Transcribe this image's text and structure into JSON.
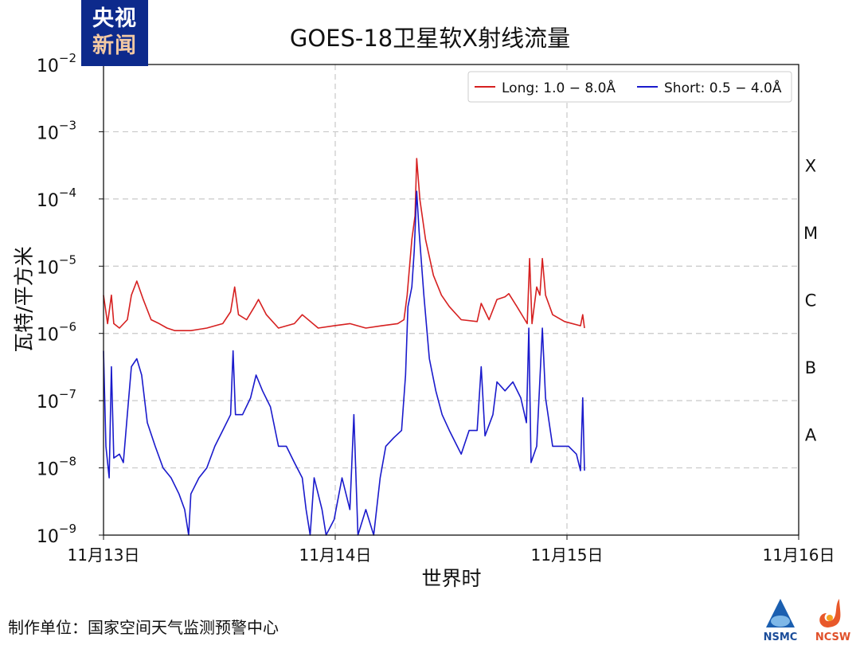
{
  "chart_data": {
    "type": "line",
    "title": "GOES-18卫星软X射线流量",
    "xlabel": "世界时",
    "ylabel": "瓦特/平方米",
    "yscale": "log",
    "ylim": [
      1e-09,
      0.01
    ],
    "xlim": [
      "11-13 00:00",
      "11-16 00:00"
    ],
    "grid": true,
    "legend_position": "top-right",
    "x_ticks": [
      {
        "at": "11-13 00:00",
        "label": "11月13日"
      },
      {
        "at": "11-14 00:00",
        "label": "11月14日"
      },
      {
        "at": "11-15 00:00",
        "label": "11月15日"
      },
      {
        "at": "11-16 00:00",
        "label": "11月16日"
      }
    ],
    "y_ticks": [
      {
        "value": 0.01,
        "base": "10",
        "exp": "−2"
      },
      {
        "value": 0.001,
        "base": "10",
        "exp": "−3"
      },
      {
        "value": 0.0001,
        "base": "10",
        "exp": "−4"
      },
      {
        "value": 1e-05,
        "base": "10",
        "exp": "−5"
      },
      {
        "value": 1e-06,
        "base": "10",
        "exp": "−6"
      },
      {
        "value": 1e-07,
        "base": "10",
        "exp": "−7"
      },
      {
        "value": 1e-08,
        "base": "10",
        "exp": "−8"
      },
      {
        "value": 1e-09,
        "base": "10",
        "exp": "−9"
      }
    ],
    "flare_classes": [
      {
        "label": "X",
        "value": 0.000316
      },
      {
        "label": "M",
        "value": 3.16e-05
      },
      {
        "label": "C",
        "value": 3.16e-06
      },
      {
        "label": "B",
        "value": 3.16e-07
      },
      {
        "label": "A",
        "value": 3.16e-08
      }
    ],
    "series": [
      {
        "name": "Long: 1.0 − 8.0Å",
        "color": "#d62020",
        "points": [
          [
            "11-13 00:00",
            3.7e-06
          ],
          [
            "11-13 00:25",
            1.4e-06
          ],
          [
            "11-13 00:49",
            3.7e-06
          ],
          [
            "11-13 01:04",
            1.4e-06
          ],
          [
            "11-13 01:39",
            1.2e-06
          ],
          [
            "11-13 02:28",
            1.6e-06
          ],
          [
            "11-13 02:53",
            3.7e-06
          ],
          [
            "11-13 03:27",
            6e-06
          ],
          [
            "11-13 04:07",
            3.2e-06
          ],
          [
            "11-13 04:56",
            1.6e-06
          ],
          [
            "11-13 05:46",
            1.4e-06
          ],
          [
            "11-13 06:35",
            1.2e-06
          ],
          [
            "11-13 07:24",
            1.1e-06
          ],
          [
            "11-13 09:03",
            1.1e-06
          ],
          [
            "11-13 10:42",
            1.2e-06
          ],
          [
            "11-13 12:21",
            1.4e-06
          ],
          [
            "11-13 13:10",
            2.1e-06
          ],
          [
            "11-13 13:35",
            4.9e-06
          ],
          [
            "11-13 13:59",
            1.9e-06
          ],
          [
            "11-13 14:49",
            1.6e-06
          ],
          [
            "11-13 15:38",
            2.5e-06
          ],
          [
            "11-13 16:03",
            3.2e-06
          ],
          [
            "11-13 16:52",
            1.9e-06
          ],
          [
            "11-13 18:07",
            1.2e-06
          ],
          [
            "11-13 19:46",
            1.4e-06
          ],
          [
            "11-13 20:35",
            1.9e-06
          ],
          [
            "11-13 22:14",
            1.2e-06
          ],
          [
            "11-13 23:53",
            1.3e-06
          ],
          [
            "11-14 01:31",
            1.4e-06
          ],
          [
            "11-14 03:10",
            1.2e-06
          ],
          [
            "11-14 04:49",
            1.3e-06
          ],
          [
            "11-14 06:28",
            1.4e-06
          ],
          [
            "11-14 07:07",
            1.6e-06
          ],
          [
            "11-14 07:27",
            3.7e-06
          ],
          [
            "11-14 07:56",
            2.5e-05
          ],
          [
            "11-14 08:16",
            5.6e-05
          ],
          [
            "11-14 08:26",
            0.0004
          ],
          [
            "11-14 08:46",
            9.8e-05
          ],
          [
            "11-14 09:21",
            2.5e-05
          ],
          [
            "11-14 10:10",
            7.3e-06
          ],
          [
            "11-14 11:00",
            3.7e-06
          ],
          [
            "11-14 11:49",
            2.5e-06
          ],
          [
            "11-14 13:03",
            1.6e-06
          ],
          [
            "11-14 14:42",
            1.5e-06
          ],
          [
            "11-14 15:07",
            2.8e-06
          ],
          [
            "11-14 15:56",
            1.6e-06
          ],
          [
            "11-14 16:45",
            3.2e-06
          ],
          [
            "11-14 17:35",
            3.5e-06
          ],
          [
            "11-14 17:59",
            3.9e-06
          ],
          [
            "11-14 18:49",
            2.5e-06
          ],
          [
            "11-14 19:38",
            1.6e-06
          ],
          [
            "11-14 19:53",
            1.4e-06
          ],
          [
            "11-14 20:08",
            1.3e-05
          ],
          [
            "11-14 20:23",
            1.4e-06
          ],
          [
            "11-14 20:52",
            4.9e-06
          ],
          [
            "11-14 21:12",
            3.7e-06
          ],
          [
            "11-14 21:27",
            1.3e-05
          ],
          [
            "11-14 21:47",
            3.7e-06
          ],
          [
            "11-14 22:31",
            1.9e-06
          ],
          [
            "11-14 23:45",
            1.5e-06
          ],
          [
            "11-15 01:24",
            1.3e-06
          ],
          [
            "11-15 01:38",
            1.9e-06
          ],
          [
            "11-15 01:49",
            1.2e-06
          ]
        ]
      },
      {
        "name": "Short: 0.5 − 4.0Å",
        "color": "#1a1acc",
        "points": [
          [
            "11-13 00:00",
            5.5e-07
          ],
          [
            "11-13 00:15",
            2.1e-08
          ],
          [
            "11-13 00:35",
            7.1e-09
          ],
          [
            "11-13 00:49",
            3.2e-07
          ],
          [
            "11-13 01:04",
            1.4e-08
          ],
          [
            "11-13 01:39",
            1.6e-08
          ],
          [
            "11-13 02:03",
            1.2e-08
          ],
          [
            "11-13 02:28",
            6.2e-08
          ],
          [
            "11-13 02:53",
            3.2e-07
          ],
          [
            "11-13 03:27",
            4.2e-07
          ],
          [
            "11-13 03:57",
            2.4e-07
          ],
          [
            "11-13 04:32",
            4.7e-08
          ],
          [
            "11-13 05:21",
            2.1e-08
          ],
          [
            "11-13 06:10",
            1e-08
          ],
          [
            "11-13 07:00",
            7.1e-09
          ],
          [
            "11-13 07:49",
            4.1e-09
          ],
          [
            "11-13 08:24",
            2.4e-09
          ],
          [
            "11-13 08:49",
            1e-09
          ],
          [
            "11-13 09:03",
            4.1e-09
          ],
          [
            "11-13 09:53",
            7.1e-09
          ],
          [
            "11-13 10:42",
            1e-08
          ],
          [
            "11-13 11:32",
            2.1e-08
          ],
          [
            "11-13 12:21",
            3.6e-08
          ],
          [
            "11-13 13:10",
            6.2e-08
          ],
          [
            "11-13 13:25",
            5.5e-07
          ],
          [
            "11-13 13:40",
            6.2e-08
          ],
          [
            "11-13 14:24",
            6.2e-08
          ],
          [
            "11-13 15:14",
            1.1e-07
          ],
          [
            "11-13 15:48",
            2.4e-07
          ],
          [
            "11-13 16:28",
            1.4e-07
          ],
          [
            "11-13 17:17",
            8.1e-08
          ],
          [
            "11-13 18:07",
            2.1e-08
          ],
          [
            "11-13 18:56",
            2.1e-08
          ],
          [
            "11-13 19:46",
            1.2e-08
          ],
          [
            "11-13 20:35",
            7.1e-09
          ],
          [
            "11-13 20:59",
            2.4e-09
          ],
          [
            "11-13 21:24",
            1e-09
          ],
          [
            "11-13 21:49",
            7.1e-09
          ],
          [
            "11-13 22:38",
            2.4e-09
          ],
          [
            "11-13 23:03",
            1e-09
          ],
          [
            "11-13 23:53",
            1.7e-09
          ],
          [
            "11-14 00:42",
            7.1e-09
          ],
          [
            "11-14 01:31",
            2.4e-09
          ],
          [
            "11-14 01:56",
            6.2e-08
          ],
          [
            "11-14 02:21",
            1e-09
          ],
          [
            "11-14 03:10",
            2.4e-09
          ],
          [
            "11-14 03:59",
            1e-09
          ],
          [
            "11-14 04:39",
            7.1e-09
          ],
          [
            "11-14 05:14",
            2.1e-08
          ],
          [
            "11-14 06:03",
            2.8e-08
          ],
          [
            "11-14 06:52",
            3.6e-08
          ],
          [
            "11-14 07:17",
            2.4e-07
          ],
          [
            "11-14 07:32",
            2.5e-06
          ],
          [
            "11-14 07:56",
            4.9e-06
          ],
          [
            "11-14 08:11",
            1.7e-05
          ],
          [
            "11-14 08:26",
            0.00013
          ],
          [
            "11-14 08:41",
            3.3e-05
          ],
          [
            "11-14 09:11",
            3.7e-06
          ],
          [
            "11-14 09:45",
            4.2e-07
          ],
          [
            "11-14 10:25",
            1.4e-07
          ],
          [
            "11-14 11:04",
            6.2e-08
          ],
          [
            "11-14 11:49",
            3.6e-08
          ],
          [
            "11-14 12:38",
            2.1e-08
          ],
          [
            "11-14 13:03",
            1.6e-08
          ],
          [
            "11-14 13:52",
            3.6e-08
          ],
          [
            "11-14 14:42",
            3.6e-08
          ],
          [
            "11-14 15:07",
            3.2e-07
          ],
          [
            "11-14 15:31",
            3e-08
          ],
          [
            "11-14 16:20",
            6.2e-08
          ],
          [
            "11-14 16:45",
            1.9e-07
          ],
          [
            "11-14 17:35",
            1.4e-07
          ],
          [
            "11-14 18:24",
            1.9e-07
          ],
          [
            "11-14 19:13",
            1.1e-07
          ],
          [
            "11-14 19:48",
            4.7e-08
          ],
          [
            "11-14 20:03",
            1.2e-06
          ],
          [
            "11-14 20:17",
            1.2e-08
          ],
          [
            "11-14 20:52",
            2.1e-08
          ],
          [
            "11-14 21:27",
            1.2e-06
          ],
          [
            "11-14 21:47",
            1.1e-07
          ],
          [
            "11-14 22:31",
            2.1e-08
          ],
          [
            "11-14 23:20",
            2.1e-08
          ],
          [
            "11-15 00:10",
            2.1e-08
          ],
          [
            "11-15 00:59",
            1.6e-08
          ],
          [
            "11-15 01:24",
            9.1e-09
          ],
          [
            "11-15 01:38",
            1.1e-07
          ],
          [
            "11-15 01:49",
            9.1e-09
          ]
        ]
      }
    ]
  },
  "branding": {
    "logo_line1": "央视",
    "logo_line2": "新闻",
    "org_logos": [
      "NSMC",
      "NCSW"
    ]
  },
  "footer": {
    "producer": "制作单位：国家空间天气监测预警中心"
  }
}
